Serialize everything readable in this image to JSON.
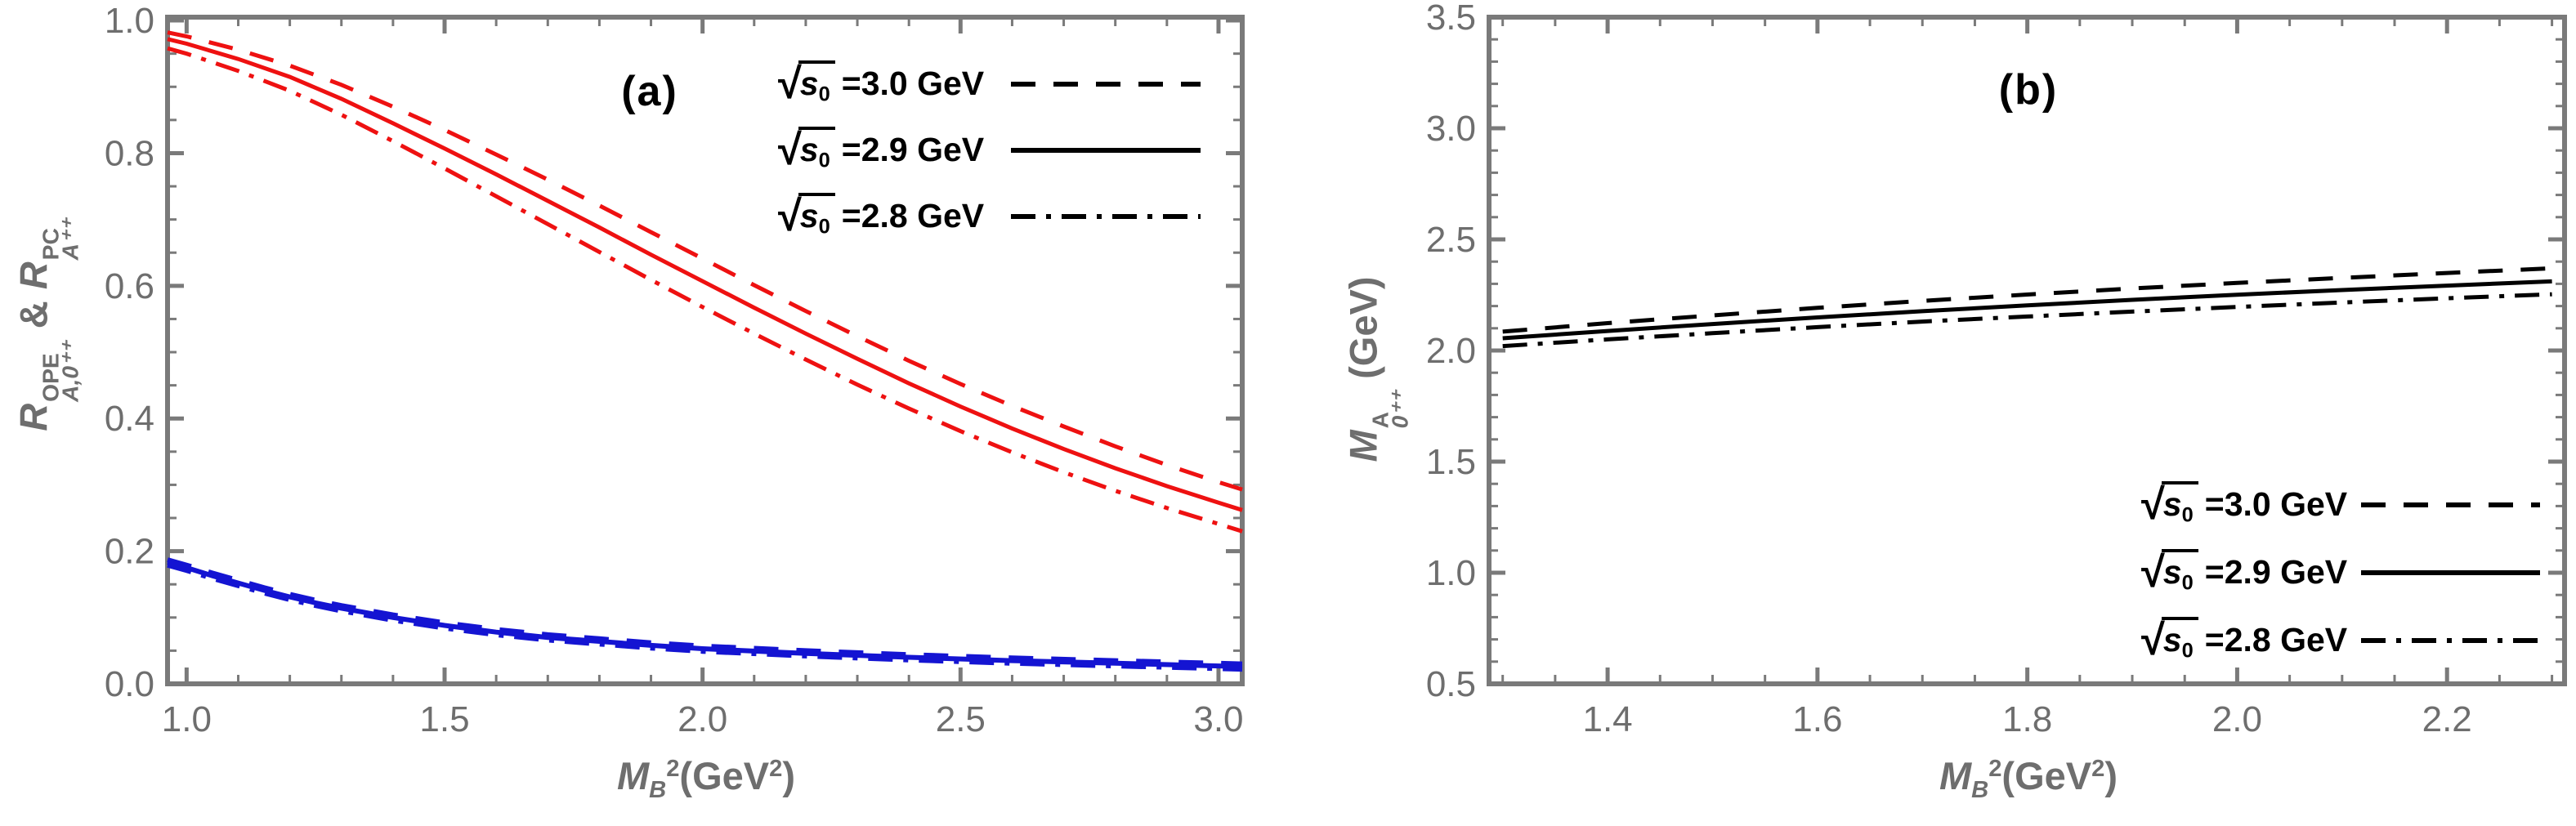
{
  "figure": {
    "background": "#ffffff",
    "frame_color": "#7a7a7a",
    "tick_label_color": "#6e6e6e",
    "axis_label_color": "#6e6e6e",
    "panels": [
      {
        "xlabel_parts": {
          "base": "M",
          "sub": "B",
          "sup": "2",
          "unit_open": "(GeV",
          "unit_sup": "2",
          "unit_close": ")"
        },
        "ylabel_parts": {
          "base1": "R",
          "sup1": "OPE",
          "sub1": "A,0⁺⁺",
          "amp": "&",
          "base2": "R",
          "sup2": "PC",
          "sub2": "A⁺⁺"
        }
      },
      {
        "xlabel_parts": {
          "base": "M",
          "sub": "B",
          "sup": "2",
          "unit_open": "(GeV",
          "unit_sup": "2",
          "unit_close": ")"
        },
        "ylabel_parts": {
          "base": "M",
          "sup": "A",
          "sub": "0⁺⁺",
          "unit": "(GeV)"
        }
      }
    ]
  },
  "chart_data": [
    {
      "type": "line",
      "panel_label": "(a)",
      "xlabel": "M_B^2 (GeV^2)",
      "ylabel": "R_{A,0++}^{OPE} & R_{A++}^{PC}",
      "x_window": [
        0.963,
        3.046
      ],
      "y_window": [
        0.0,
        1.005
      ],
      "xticks": [
        1.0,
        1.5,
        2.0,
        2.5,
        3.0
      ],
      "yticks": [
        0.0,
        0.2,
        0.4,
        0.6,
        0.8,
        1.0
      ],
      "x_minor_step": 0.1,
      "y_minor_step": 0.05,
      "grid": false,
      "legend": {
        "position": "top-right",
        "radical": "√",
        "items": [
          {
            "prefix_root": "s",
            "prefix_sub": "0",
            "label": "=3.0 GeV",
            "dash": "dashed"
          },
          {
            "prefix_root": "s",
            "prefix_sub": "0",
            "label": "=2.9 GeV",
            "dash": "solid"
          },
          {
            "prefix_root": "s",
            "prefix_sub": "0",
            "label": "=2.8 GeV",
            "dash": "dashdot"
          }
        ]
      },
      "series": [
        {
          "name": "R_OPE sqrt(s0)=3.0 GeV",
          "color": "#ee1111",
          "dash": "dashed",
          "width": 5,
          "x": [
            0.963,
            1.0,
            1.1,
            1.2,
            1.3,
            1.4,
            1.5,
            1.6,
            1.7,
            1.8,
            1.9,
            2.0,
            2.1,
            2.2,
            2.3,
            2.4,
            2.5,
            2.6,
            2.7,
            2.8,
            2.9,
            3.0,
            3.046
          ],
          "y": [
            0.982,
            0.976,
            0.956,
            0.932,
            0.903,
            0.87,
            0.835,
            0.798,
            0.76,
            0.721,
            0.681,
            0.641,
            0.601,
            0.562,
            0.524,
            0.487,
            0.452,
            0.419,
            0.388,
            0.358,
            0.33,
            0.304,
            0.293
          ]
        },
        {
          "name": "R_OPE sqrt(s0)=2.9 GeV",
          "color": "#ee1111",
          "dash": "solid",
          "width": 5,
          "x": [
            0.963,
            1.0,
            1.1,
            1.2,
            1.3,
            1.4,
            1.5,
            1.6,
            1.7,
            1.8,
            1.9,
            2.0,
            2.1,
            2.2,
            2.3,
            2.4,
            2.5,
            2.6,
            2.7,
            2.8,
            2.9,
            3.0,
            3.046
          ],
          "y": [
            0.972,
            0.965,
            0.942,
            0.915,
            0.882,
            0.845,
            0.807,
            0.768,
            0.728,
            0.688,
            0.647,
            0.607,
            0.567,
            0.528,
            0.49,
            0.453,
            0.418,
            0.385,
            0.354,
            0.325,
            0.298,
            0.273,
            0.262
          ]
        },
        {
          "name": "R_OPE sqrt(s0)=2.8 GeV",
          "color": "#ee1111",
          "dash": "dashdot",
          "width": 5,
          "x": [
            0.963,
            1.0,
            1.1,
            1.2,
            1.3,
            1.4,
            1.5,
            1.6,
            1.7,
            1.8,
            1.9,
            2.0,
            2.1,
            2.2,
            2.3,
            2.4,
            2.5,
            2.6,
            2.7,
            2.8,
            2.9,
            3.0,
            3.046
          ],
          "y": [
            0.958,
            0.95,
            0.924,
            0.894,
            0.858,
            0.818,
            0.777,
            0.735,
            0.693,
            0.651,
            0.609,
            0.568,
            0.528,
            0.489,
            0.451,
            0.415,
            0.381,
            0.349,
            0.319,
            0.291,
            0.265,
            0.241,
            0.23
          ]
        },
        {
          "name": "R_PC sqrt(s0)=3.0 GeV",
          "color": "#1414d2",
          "dash": "dashed",
          "width": 6,
          "x": [
            0.963,
            1.0,
            1.05,
            1.1,
            1.15,
            1.2,
            1.25,
            1.3,
            1.4,
            1.5,
            1.6,
            1.7,
            1.8,
            1.9,
            2.0,
            2.2,
            2.4,
            2.6,
            2.8,
            3.0,
            3.046
          ],
          "y": [
            0.187,
            0.179,
            0.167,
            0.156,
            0.145,
            0.135,
            0.126,
            0.118,
            0.104,
            0.092,
            0.082,
            0.074,
            0.068,
            0.062,
            0.057,
            0.05,
            0.044,
            0.039,
            0.035,
            0.031,
            0.03
          ]
        },
        {
          "name": "R_PC sqrt(s0)=2.9 GeV",
          "color": "#1414d2",
          "dash": "solid",
          "width": 6,
          "x": [
            0.963,
            1.0,
            1.05,
            1.1,
            1.15,
            1.2,
            1.25,
            1.3,
            1.4,
            1.5,
            1.6,
            1.7,
            1.8,
            1.9,
            2.0,
            2.2,
            2.4,
            2.6,
            2.8,
            3.0,
            3.046
          ],
          "y": [
            0.183,
            0.175,
            0.163,
            0.152,
            0.141,
            0.131,
            0.122,
            0.114,
            0.1,
            0.088,
            0.078,
            0.07,
            0.064,
            0.058,
            0.053,
            0.046,
            0.04,
            0.035,
            0.031,
            0.027,
            0.026
          ]
        },
        {
          "name": "R_PC sqrt(s0)=2.8 GeV",
          "color": "#1414d2",
          "dash": "dashdot",
          "width": 6,
          "x": [
            0.963,
            1.0,
            1.05,
            1.1,
            1.15,
            1.2,
            1.25,
            1.3,
            1.4,
            1.5,
            1.6,
            1.7,
            1.8,
            1.9,
            2.0,
            2.2,
            2.4,
            2.6,
            2.8,
            3.0,
            3.046
          ],
          "y": [
            0.179,
            0.171,
            0.159,
            0.148,
            0.137,
            0.127,
            0.118,
            0.11,
            0.096,
            0.084,
            0.074,
            0.066,
            0.06,
            0.054,
            0.049,
            0.042,
            0.036,
            0.031,
            0.027,
            0.023,
            0.022
          ]
        }
      ]
    },
    {
      "type": "line",
      "panel_label": "(b)",
      "xlabel": "M_B^2 (GeV^2)",
      "ylabel": "M_{0++}^{A} (GeV)",
      "x_window": [
        1.287,
        2.312
      ],
      "y_window": [
        0.5,
        3.5
      ],
      "xticks": [
        1.4,
        1.6,
        1.8,
        2.0,
        2.2
      ],
      "yticks": [
        0.5,
        1.0,
        1.5,
        2.0,
        2.5,
        3.0,
        3.5
      ],
      "x_minor_step": 0.05,
      "y_minor_step": 0.1,
      "grid": false,
      "legend": {
        "position": "bottom-right",
        "radical": "√",
        "items": [
          {
            "prefix_root": "s",
            "prefix_sub": "0",
            "label": "=3.0 GeV",
            "dash": "dashed"
          },
          {
            "prefix_root": "s",
            "prefix_sub": "0",
            "label": "=2.9 GeV",
            "dash": "solid"
          },
          {
            "prefix_root": "s",
            "prefix_sub": "0",
            "label": "=2.8 GeV",
            "dash": "dashdot"
          }
        ]
      },
      "series": [
        {
          "name": "M_A sqrt(s0)=3.0 GeV",
          "color": "#000000",
          "dash": "dashed",
          "width": 5,
          "x": [
            1.3,
            1.4,
            1.5,
            1.6,
            1.7,
            1.8,
            1.9,
            2.0,
            2.1,
            2.2,
            2.3
          ],
          "y": [
            2.085,
            2.123,
            2.158,
            2.192,
            2.223,
            2.252,
            2.279,
            2.304,
            2.327,
            2.349,
            2.37
          ]
        },
        {
          "name": "M_A sqrt(s0)=2.9 GeV",
          "color": "#000000",
          "dash": "solid",
          "width": 5,
          "x": [
            1.3,
            1.4,
            1.5,
            1.6,
            1.7,
            1.8,
            1.9,
            2.0,
            2.1,
            2.2,
            2.3
          ],
          "y": [
            2.055,
            2.088,
            2.119,
            2.149,
            2.177,
            2.203,
            2.228,
            2.251,
            2.272,
            2.292,
            2.311
          ]
        },
        {
          "name": "M_A sqrt(s0)=2.8 GeV",
          "color": "#000000",
          "dash": "dashdot",
          "width": 5,
          "x": [
            1.3,
            1.4,
            1.5,
            1.6,
            1.7,
            1.8,
            1.9,
            2.0,
            2.1,
            2.2,
            2.3
          ],
          "y": [
            2.02,
            2.05,
            2.078,
            2.105,
            2.13,
            2.153,
            2.175,
            2.196,
            2.216,
            2.235,
            2.253
          ]
        }
      ]
    }
  ]
}
